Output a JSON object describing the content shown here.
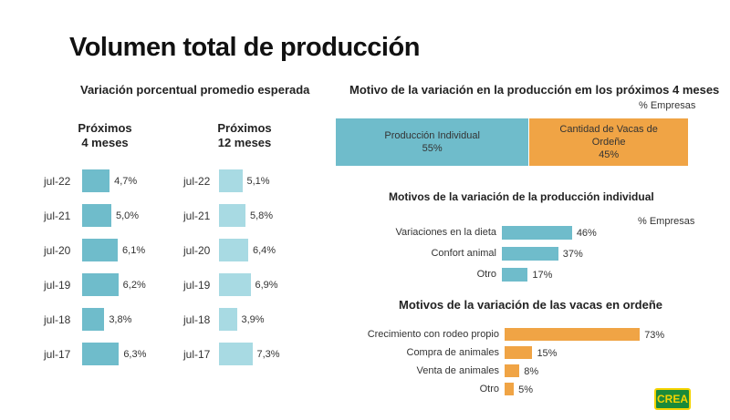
{
  "page": {
    "title": "Volumen total de producción",
    "left_subtitle": "Variación porcentual promedio esperada",
    "col_4m_line1": "Próximos",
    "col_4m_line2": "4 meses",
    "col_12m_line1": "Próximos",
    "col_12m_line2": "12 meses",
    "right_title": "Motivo de la variación en la producción em los próximos 4 meses",
    "pct_empresas_1": "% Empresas",
    "mid_title": "Motivos de la variación de la producción individual",
    "pct_empresas_2": "% Empresas",
    "bottom_title": "Motivos de la variación de las vacas en ordeñe",
    "logo_text": "CREA"
  },
  "colors": {
    "teal_dark": "#6fbccb",
    "teal_light": "#a8dae3",
    "orange": "#f0a445"
  },
  "chart_data": [
    {
      "type": "bar",
      "orientation": "horizontal",
      "title": "Próximos 4 meses",
      "categories": [
        "jul-22",
        "jul-21",
        "jul-20",
        "jul-19",
        "jul-18",
        "jul-17"
      ],
      "values": [
        4.7,
        5.0,
        6.1,
        6.2,
        3.8,
        6.3
      ],
      "labels": [
        "4,7%",
        "5,0%",
        "6,1%",
        "6,2%",
        "3,8%",
        "6,3%"
      ],
      "unit": "%"
    },
    {
      "type": "bar",
      "orientation": "horizontal",
      "title": "Próximos 12 meses",
      "categories": [
        "jul-22",
        "jul-21",
        "jul-20",
        "jul-19",
        "jul-18",
        "jul-17"
      ],
      "values": [
        5.1,
        5.8,
        6.4,
        6.9,
        3.9,
        7.3
      ],
      "labels": [
        "5,1%",
        "5,8%",
        "6,4%",
        "6,9%",
        "3,9%",
        "7,3%"
      ],
      "unit": "%"
    },
    {
      "type": "bar",
      "orientation": "stacked-horizontal",
      "title": "Motivo de la variación en la producción em los próximos 4 meses",
      "series": [
        {
          "name_line1": "Producción Individual",
          "name_line2": "",
          "value": 55,
          "label": "55%"
        },
        {
          "name_line1": "Cantidad de Vacas de",
          "name_line2": "Ordeñe",
          "value": 45,
          "label": "45%"
        }
      ],
      "unit": "% Empresas"
    },
    {
      "type": "bar",
      "orientation": "horizontal",
      "title": "Motivos de la variación de la producción individual",
      "categories": [
        "Variaciones en la dieta",
        "Confort animal",
        "Otro"
      ],
      "values": [
        46,
        37,
        17
      ],
      "labels": [
        "46%",
        "37%",
        "17%"
      ],
      "unit": "% Empresas"
    },
    {
      "type": "bar",
      "orientation": "horizontal",
      "title": "Motivos de la variación de las vacas en ordeñe",
      "categories": [
        "Crecimiento con rodeo propio",
        "Compra de animales",
        "Venta de animales",
        "Otro"
      ],
      "values": [
        73,
        15,
        8,
        5
      ],
      "labels": [
        "73%",
        "15%",
        "8%",
        "5%"
      ],
      "unit": "% Empresas"
    }
  ]
}
